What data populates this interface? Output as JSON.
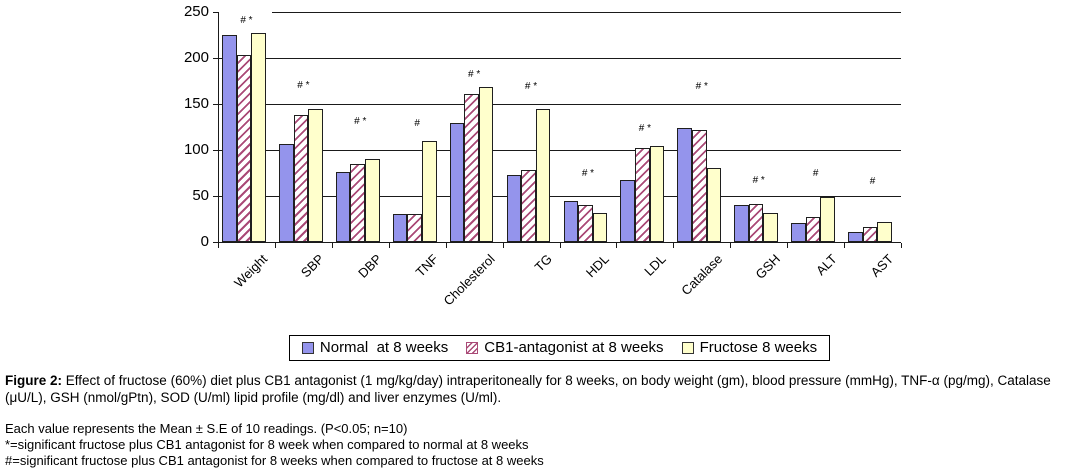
{
  "chart_data": {
    "type": "bar",
    "title": "",
    "categories": [
      "Weight",
      "SBP",
      "DBP",
      "TNF",
      "Cholesterol",
      "TG",
      "HDL",
      "LDL",
      "Catalase",
      "GSH",
      "ALT",
      "AST"
    ],
    "series": [
      {
        "name": "Normal  at 8 weeks",
        "fill": "#9494ec",
        "pattern": "solid",
        "values": [
          225,
          106,
          76,
          30,
          129,
          73,
          45,
          67,
          124,
          40,
          21,
          11
        ]
      },
      {
        "name": "CB1-antagonist at 8 weeks",
        "fill": "#ffffff",
        "pattern": "hatch",
        "pattern_color": "#aa4a77",
        "values": [
          203,
          138,
          85,
          30,
          161,
          78,
          40,
          102,
          122,
          41,
          27,
          16
        ]
      },
      {
        "name": "Fructose 8 weeks",
        "fill": "#ffffcc",
        "pattern": "solid",
        "values": [
          227,
          145,
          90,
          110,
          168,
          145,
          32,
          104,
          80,
          31,
          49,
          22
        ]
      }
    ],
    "annotations": [
      {
        "text": "# *",
        "y": 240
      },
      {
        "text": "# *",
        "y": 170
      },
      {
        "text": "# *",
        "y": 130
      },
      {
        "text": "#",
        "y": 128
      },
      {
        "text": "# *",
        "y": 181
      },
      {
        "text": "# *",
        "y": 169
      },
      {
        "text": "# *",
        "y": 74
      },
      {
        "text": "# *",
        "y": 123
      },
      {
        "text": "# *",
        "y": 168
      },
      {
        "text": "# *",
        "y": 66
      },
      {
        "text": "#",
        "y": 74
      },
      {
        "text": "#",
        "y": 65
      }
    ],
    "ylim": [
      0,
      250
    ],
    "yticks": [
      0,
      50,
      100,
      150,
      200,
      250
    ],
    "xlabel": "",
    "ylabel": "",
    "grid": true,
    "legend_position": "bottom"
  },
  "caption": {
    "figure_label": "Figure 2:",
    "figure_text": " Effect of fructose (60%) diet plus CB1 antagonist (1 mg/kg/day) intraperitoneally for 8 weeks, on body weight (gm), blood pressure (mmHg), TNF-α (pg/mg), Catalase (μU/L), GSH (nmol/gPtn), SOD (U/ml) lipid profile (mg/dl) and liver enzymes (U/ml)."
  },
  "notes": {
    "line1": "Each value represents the Mean ± S.E of 10 readings. (P<0.05; n=10)",
    "line2": "*=significant fructose plus CB1 antagonist for 8 week when compared to normal at 8 weeks",
    "line3": "#=significant fructose plus CB1 antagonist for 8 weeks when compared to fructose at 8 weeks"
  }
}
